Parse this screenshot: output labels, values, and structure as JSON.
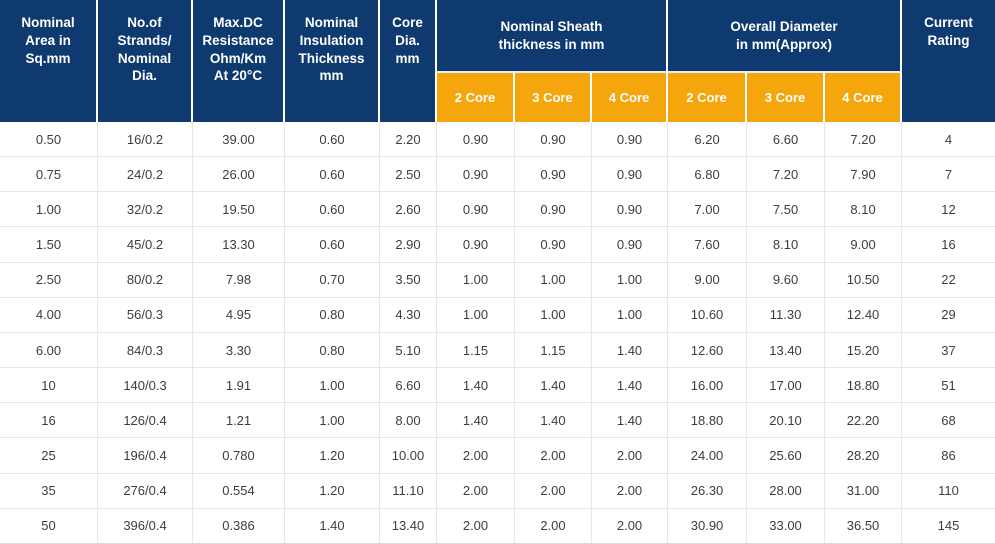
{
  "colors": {
    "header_navy": "#0e3a70",
    "header_orange": "#f6a60d",
    "header_text": "#ffffff",
    "body_text": "#3d3d3d",
    "row_border": "#e8e8e8"
  },
  "table": {
    "header": {
      "simple_columns": [
        "Nominal\nArea in\nSq.mm",
        "No.of\nStrands/\nNominal\nDia.",
        "Max.DC\nResistance\nOhm/Km\nAt 20°C",
        "Nominal\nInsulation\nThickness\nmm",
        "Core\nDia.\nmm"
      ],
      "groups": [
        {
          "label": "Nominal Sheath\nthickness in mm",
          "sub": [
            "2 Core",
            "3 Core",
            "4 Core"
          ]
        },
        {
          "label": "Overall Diameter\nin mm(Approx)",
          "sub": [
            "2 Core",
            "3 Core",
            "4 Core"
          ]
        }
      ],
      "last_column": "Current\nRating"
    },
    "rows": [
      [
        "0.50",
        "16/0.2",
        "39.00",
        "0.60",
        "2.20",
        "0.90",
        "0.90",
        "0.90",
        "6.20",
        "6.60",
        "7.20",
        "4"
      ],
      [
        "0.75",
        "24/0.2",
        "26.00",
        "0.60",
        "2.50",
        "0.90",
        "0.90",
        "0.90",
        "6.80",
        "7.20",
        "7.90",
        "7"
      ],
      [
        "1.00",
        "32/0.2",
        "19.50",
        "0.60",
        "2.60",
        "0.90",
        "0.90",
        "0.90",
        "7.00",
        "7.50",
        "8.10",
        "12"
      ],
      [
        "1.50",
        "45/0.2",
        "13.30",
        "0.60",
        "2.90",
        "0.90",
        "0.90",
        "0.90",
        "7.60",
        "8.10",
        "9.00",
        "16"
      ],
      [
        "2.50",
        "80/0.2",
        "7.98",
        "0.70",
        "3.50",
        "1.00",
        "1.00",
        "1.00",
        "9.00",
        "9.60",
        "10.50",
        "22"
      ],
      [
        "4.00",
        "56/0.3",
        "4.95",
        "0.80",
        "4.30",
        "1.00",
        "1.00",
        "1.00",
        "10.60",
        "11.30",
        "12.40",
        "29"
      ],
      [
        "6.00",
        "84/0.3",
        "3.30",
        "0.80",
        "5.10",
        "1.15",
        "1.15",
        "1.40",
        "12.60",
        "13.40",
        "15.20",
        "37"
      ],
      [
        "10",
        "140/0.3",
        "1.91",
        "1.00",
        "6.60",
        "1.40",
        "1.40",
        "1.40",
        "16.00",
        "17.00",
        "18.80",
        "51"
      ],
      [
        "16",
        "126/0.4",
        "1.21",
        "1.00",
        "8.00",
        "1.40",
        "1.40",
        "1.40",
        "18.80",
        "20.10",
        "22.20",
        "68"
      ],
      [
        "25",
        "196/0.4",
        "0.780",
        "1.20",
        "10.00",
        "2.00",
        "2.00",
        "2.00",
        "24.00",
        "25.60",
        "28.20",
        "86"
      ],
      [
        "35",
        "276/0.4",
        "0.554",
        "1.20",
        "11.10",
        "2.00",
        "2.00",
        "2.00",
        "26.30",
        "28.00",
        "31.00",
        "110"
      ],
      [
        "50",
        "396/0.4",
        "0.386",
        "1.40",
        "13.40",
        "2.00",
        "2.00",
        "2.00",
        "30.90",
        "33.00",
        "36.50",
        "145"
      ]
    ]
  }
}
